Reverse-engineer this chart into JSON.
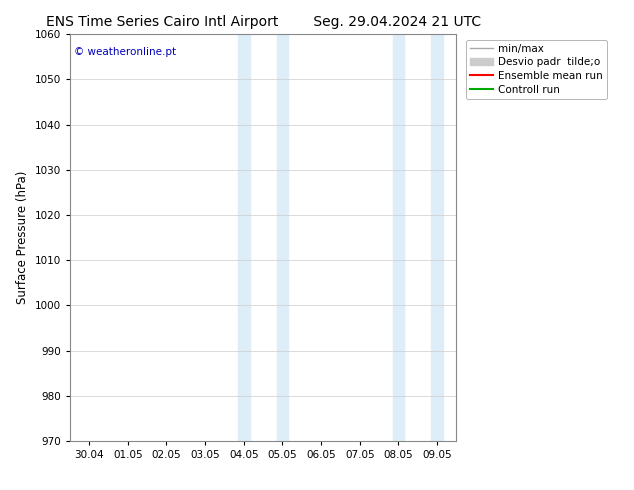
{
  "title_left": "ENS Time Series Cairo Intl Airport",
  "title_right": "Seg. 29.04.2024 21 UTC",
  "ylabel": "Surface Pressure (hPa)",
  "ylim": [
    970,
    1060
  ],
  "yticks": [
    970,
    980,
    990,
    1000,
    1010,
    1020,
    1030,
    1040,
    1050,
    1060
  ],
  "xtick_labels": [
    "30.04",
    "01.05",
    "02.05",
    "03.05",
    "04.05",
    "05.05",
    "06.05",
    "07.05",
    "08.05",
    "09.05"
  ],
  "xtick_positions": [
    0,
    1,
    2,
    3,
    4,
    5,
    6,
    7,
    8,
    9
  ],
  "xlim": [
    -0.5,
    9.5
  ],
  "shaded_bands": [
    {
      "xmin": 3.85,
      "xmax": 4.15
    },
    {
      "xmin": 4.85,
      "xmax": 5.15
    },
    {
      "xmin": 7.85,
      "xmax": 8.15
    },
    {
      "xmin": 8.85,
      "xmax": 9.15
    }
  ],
  "shade_color": "#ddeef8",
  "watermark": "© weatheronline.pt",
  "watermark_color": "#0000bb",
  "legend_entries": [
    {
      "label": "min/max",
      "color": "#aaaaaa",
      "lw": 1.0,
      "style": "-",
      "type": "line"
    },
    {
      "label": "Desvio padr  tilde;o",
      "color": "#cccccc",
      "lw": 6,
      "style": "-",
      "type": "patch"
    },
    {
      "label": "Ensemble mean run",
      "color": "#ff0000",
      "lw": 1.5,
      "style": "-",
      "type": "line"
    },
    {
      "label": "Controll run",
      "color": "#00aa00",
      "lw": 1.5,
      "style": "-",
      "type": "line"
    }
  ],
  "bg_color": "#ffffff",
  "grid_color": "#cccccc",
  "title_fontsize": 10,
  "tick_fontsize": 7.5,
  "ylabel_fontsize": 8.5,
  "legend_fontsize": 7.5
}
